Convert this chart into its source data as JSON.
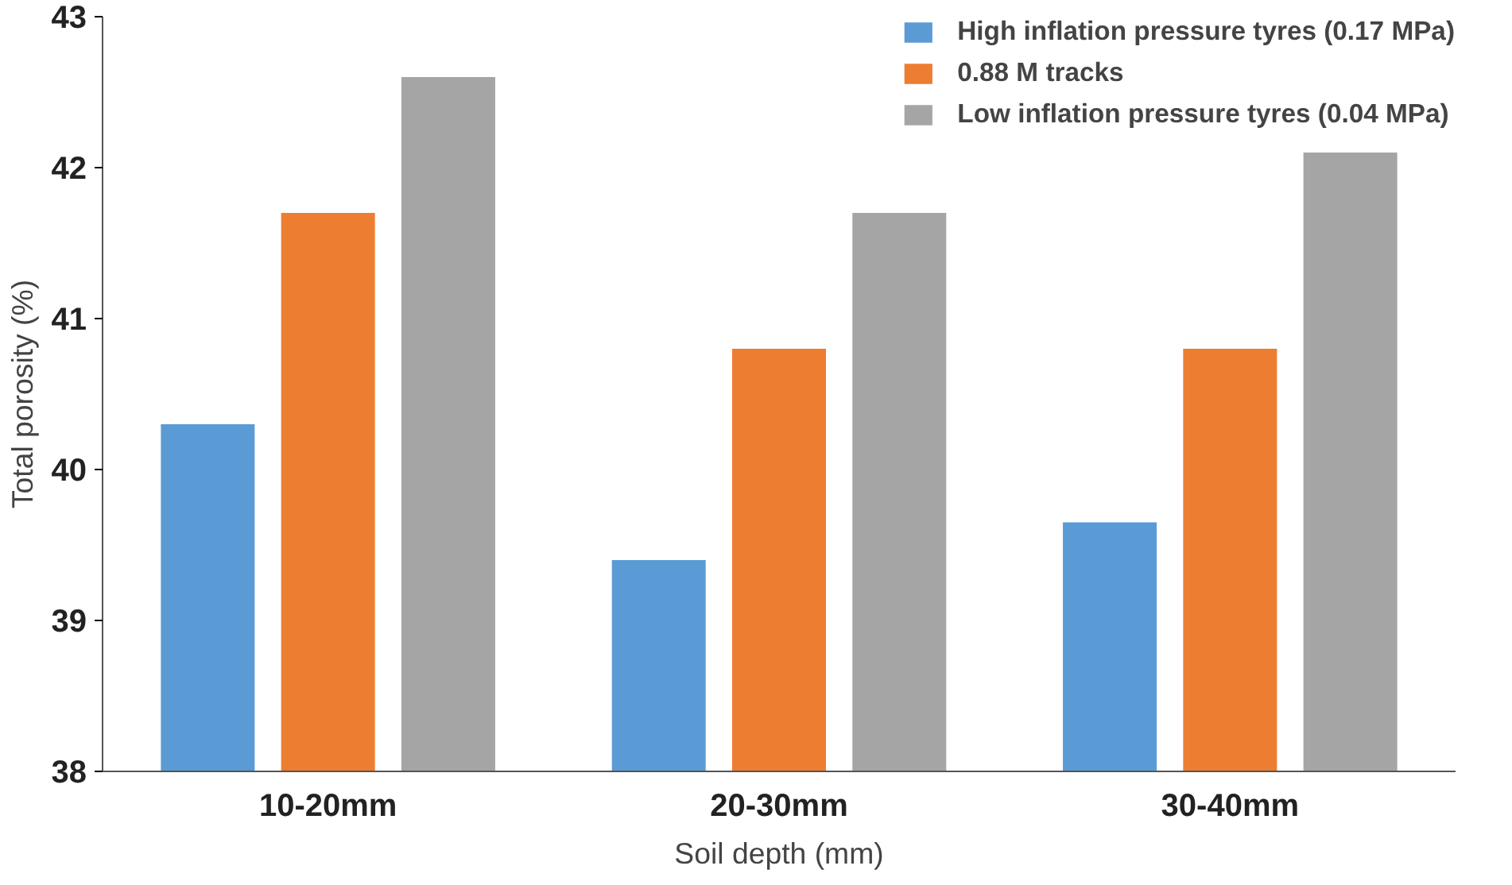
{
  "chart_data": {
    "type": "bar",
    "xlabel": "Soil depth (mm)",
    "ylabel": "Total porosity (%)",
    "categories": [
      "10-20mm",
      "20-30mm",
      "30-40mm"
    ],
    "series": [
      {
        "name": "High inflation pressure tyres (0.17 MPa)",
        "color": "#5b9bd5",
        "values": [
          40.3,
          39.4,
          39.65
        ]
      },
      {
        "name": "0.88 M tracks",
        "color": "#ed7d31",
        "values": [
          41.7,
          40.8,
          40.8
        ]
      },
      {
        "name": "Low inflation pressure tyres (0.04 MPa)",
        "color": "#a5a5a5",
        "values": [
          42.6,
          41.7,
          42.1
        ]
      }
    ],
    "ylim": [
      38,
      43
    ],
    "yticks": [
      38,
      39,
      40,
      41,
      42,
      43
    ],
    "grid": false,
    "legend": "top right"
  }
}
